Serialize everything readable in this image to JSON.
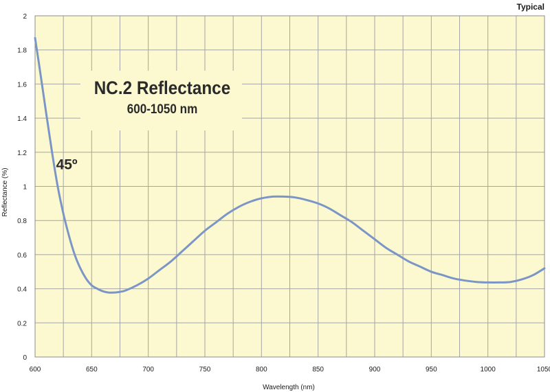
{
  "chart_data": {
    "type": "line",
    "title": "NC.2 Reflectance",
    "subtitle": "600-1050 nm",
    "corner_label": "Typical",
    "xlabel": "Wavelength (nm)",
    "ylabel": "Reflectance (%)",
    "xlim": [
      600,
      1050
    ],
    "ylim": [
      0,
      2
    ],
    "x_ticks": [
      600,
      650,
      700,
      750,
      800,
      850,
      900,
      950,
      1000,
      1050
    ],
    "y_ticks": [
      0,
      0.2,
      0.4,
      0.6,
      0.8,
      1,
      1.2,
      1.4,
      1.6,
      1.8,
      2
    ],
    "x_minor_step": 25,
    "grid": true,
    "annotations": [
      {
        "text": "45º",
        "x": 628,
        "y": 1.1
      }
    ],
    "series": [
      {
        "color": "#7b96c6",
        "x": [
          600,
          605,
          610,
          615,
          620,
          625,
          630,
          635,
          640,
          645,
          650,
          655,
          660,
          665,
          670,
          675,
          680,
          690,
          700,
          710,
          720,
          730,
          740,
          750,
          760,
          770,
          780,
          790,
          800,
          810,
          820,
          830,
          840,
          850,
          860,
          870,
          880,
          890,
          900,
          910,
          920,
          930,
          940,
          950,
          960,
          970,
          980,
          990,
          1000,
          1010,
          1020,
          1030,
          1040,
          1050
        ],
        "y": [
          1.87,
          1.65,
          1.42,
          1.2,
          1.0,
          0.84,
          0.71,
          0.6,
          0.52,
          0.46,
          0.42,
          0.4,
          0.385,
          0.378,
          0.378,
          0.382,
          0.39,
          0.42,
          0.46,
          0.51,
          0.56,
          0.62,
          0.68,
          0.74,
          0.79,
          0.84,
          0.88,
          0.91,
          0.93,
          0.94,
          0.94,
          0.935,
          0.92,
          0.9,
          0.87,
          0.83,
          0.79,
          0.74,
          0.69,
          0.64,
          0.6,
          0.56,
          0.53,
          0.5,
          0.48,
          0.46,
          0.448,
          0.44,
          0.437,
          0.437,
          0.44,
          0.455,
          0.48,
          0.52
        ]
      }
    ]
  },
  "colors": {
    "plot_background": "#fcf8cf",
    "grid": "#a5a5a5",
    "line": "#7b96c6"
  }
}
